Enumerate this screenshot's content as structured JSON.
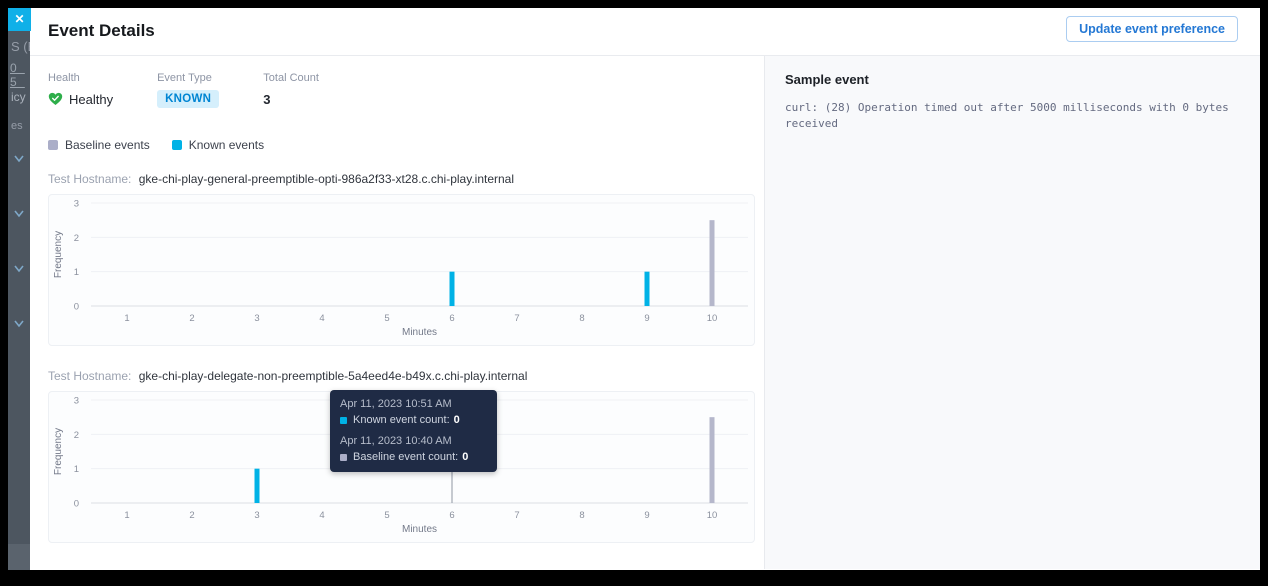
{
  "window": {
    "close_label": "✕"
  },
  "backdrop": {
    "fragments": {
      "line1": "S (Ex",
      "link1": "0",
      "link2": "5",
      "line2": "icy E",
      "line3": "es"
    }
  },
  "header": {
    "title": "Event Details",
    "update_button_label": "Update event preference"
  },
  "stats": {
    "health_label": "Health",
    "health_value": "Healthy",
    "event_type_label": "Event Type",
    "event_type_value": "KNOWN",
    "total_count_label": "Total Count",
    "total_count_value": "3"
  },
  "legend": [
    {
      "label": "Baseline events",
      "color": "#abaec8"
    },
    {
      "label": "Known events",
      "color": "#00b2e6"
    }
  ],
  "hostnames": [
    {
      "label": "Test Hostname:",
      "value": "gke-chi-play-general-preemptible-opti-986a2f33-xt28.c.chi-play.internal"
    },
    {
      "label": "Test Hostname:",
      "value": "gke-chi-play-delegate-non-preemptible-5a4eed4e-b49x.c.chi-play.internal"
    }
  ],
  "chart_data": [
    {
      "type": "bar",
      "x": [
        1,
        2,
        3,
        4,
        5,
        6,
        7,
        8,
        9,
        10
      ],
      "series": [
        {
          "name": "Baseline events",
          "color": "#b5b7cb",
          "values": [
            0,
            0,
            0,
            0,
            0,
            0,
            0,
            0,
            0,
            2.5
          ]
        },
        {
          "name": "Known events",
          "color": "#00b2e6",
          "values": [
            0,
            0,
            0,
            0,
            0,
            1,
            0,
            0,
            1,
            0
          ]
        }
      ],
      "xlabel": "Minutes",
      "ylabel": "Frequency",
      "ylim": [
        0,
        3
      ],
      "yticks": [
        0,
        1,
        2,
        3
      ],
      "grid": true,
      "legend_position": "above-charts"
    },
    {
      "type": "bar",
      "x": [
        1,
        2,
        3,
        4,
        5,
        6,
        7,
        8,
        9,
        10
      ],
      "series": [
        {
          "name": "Baseline events",
          "color": "#b5b7cb",
          "values": [
            0,
            0,
            0,
            0,
            0,
            0,
            0,
            0,
            0,
            2.5
          ]
        },
        {
          "name": "Known events",
          "color": "#00b2e6",
          "values": [
            0,
            0,
            1,
            0,
            0,
            0,
            0,
            0,
            0,
            0
          ]
        }
      ],
      "xlabel": "Minutes",
      "ylabel": "Frequency",
      "ylim": [
        0,
        3
      ],
      "yticks": [
        0,
        1,
        2,
        3
      ],
      "grid": true,
      "legend_position": "above-charts",
      "tooltip": {
        "anchor_minute": 6,
        "groups": [
          {
            "time": "Apr 11, 2023 10:51 AM",
            "swatch_color": "#00b2e6",
            "label": "Known event count:",
            "value": "0"
          },
          {
            "time": "Apr 11, 2023 10:40 AM",
            "swatch_color": "#abaec8",
            "label": "Baseline event count:",
            "value": "0"
          }
        ]
      }
    }
  ],
  "sample_panel": {
    "title": "Sample event",
    "text": "curl: (28) Operation timed out after 5000 milliseconds with 0 bytes received"
  }
}
